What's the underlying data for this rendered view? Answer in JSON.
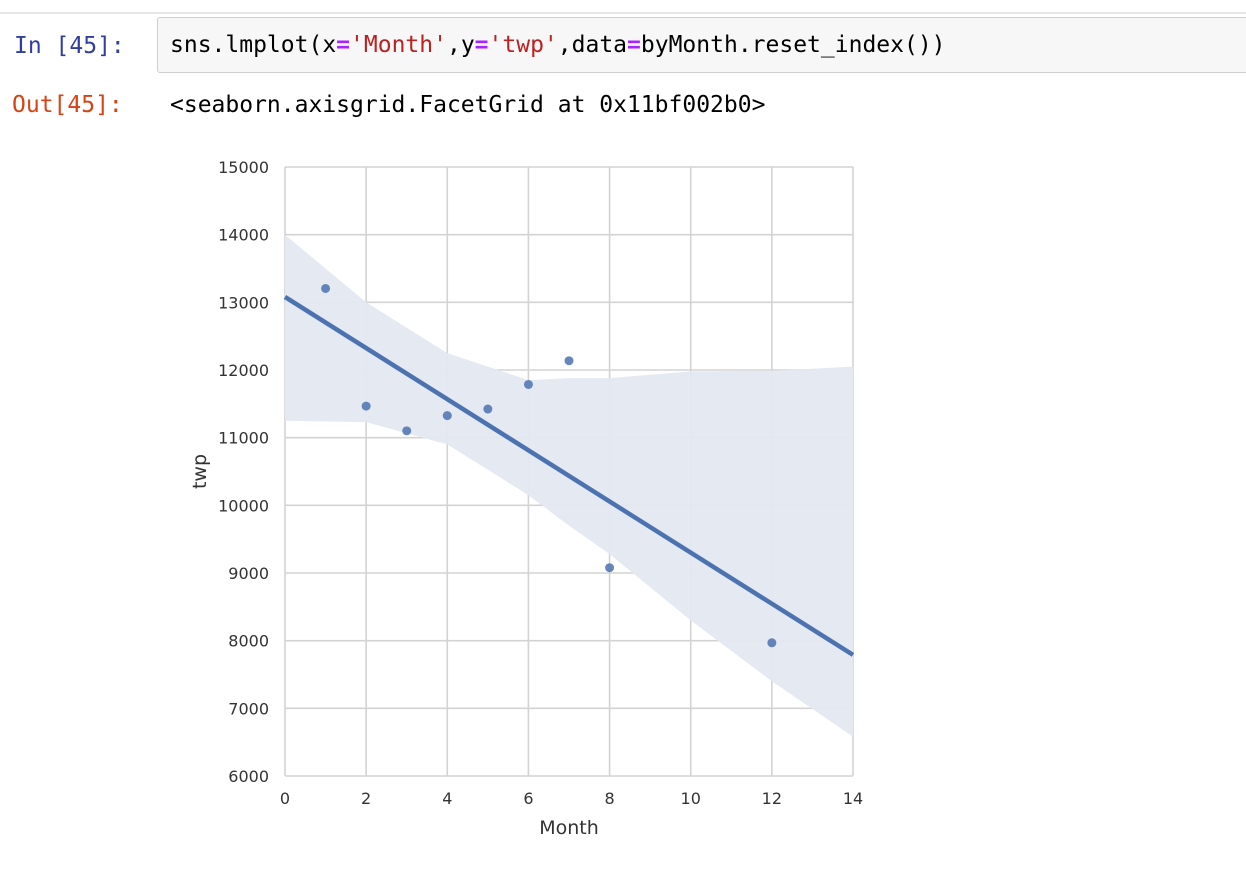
{
  "cell": {
    "in_prompt": "In [45]:",
    "out_prompt": "Out[45]:",
    "code_tokens": [
      {
        "text": "sns.lmplot(x",
        "kind": "plain"
      },
      {
        "text": "=",
        "kind": "eq"
      },
      {
        "text": "'Month'",
        "kind": "str"
      },
      {
        "text": ",y",
        "kind": "plain"
      },
      {
        "text": "=",
        "kind": "eq"
      },
      {
        "text": "'twp'",
        "kind": "str"
      },
      {
        "text": ",data",
        "kind": "plain"
      },
      {
        "text": "=",
        "kind": "eq"
      },
      {
        "text": "byMonth.reset_index())",
        "kind": "plain"
      }
    ],
    "output_text": "<seaborn.axisgrid.FacetGrid at 0x11bf002b0>"
  },
  "colors": {
    "prompt_in": "#303f9f",
    "prompt_out": "#d84315",
    "input_bg": "#f7f7f7",
    "point": "#4c72b0",
    "line": "#4c72b0",
    "ci_band": "#e4e8f1",
    "grid": "#d3d3d3"
  },
  "chart_data": {
    "type": "scatter",
    "xlabel": "Month",
    "ylabel": "twp",
    "xlim": [
      0,
      14
    ],
    "ylim": [
      6000,
      15000
    ],
    "xticks": [
      0,
      2,
      4,
      6,
      8,
      10,
      12,
      14
    ],
    "yticks": [
      6000,
      7000,
      8000,
      9000,
      10000,
      11000,
      12000,
      13000,
      14000,
      15000
    ],
    "grid": true,
    "points": {
      "x": [
        1,
        2,
        3,
        4,
        5,
        6,
        7,
        8,
        12
      ],
      "y": [
        13205,
        11467,
        11101,
        11326,
        11423,
        11786,
        12137,
        9078,
        7969
      ]
    },
    "regression_line": {
      "x": [
        0,
        14
      ],
      "y": [
        13080,
        7790
      ]
    },
    "confidence_band": {
      "x": [
        0,
        2,
        4,
        6,
        7,
        8,
        10,
        12,
        14
      ],
      "upper": [
        14000,
        13000,
        12250,
        11850,
        11880,
        11880,
        11980,
        11990,
        12050
      ],
      "lower": [
        11250,
        11230,
        10900,
        10150,
        9700,
        9280,
        8300,
        7400,
        6580
      ]
    }
  }
}
